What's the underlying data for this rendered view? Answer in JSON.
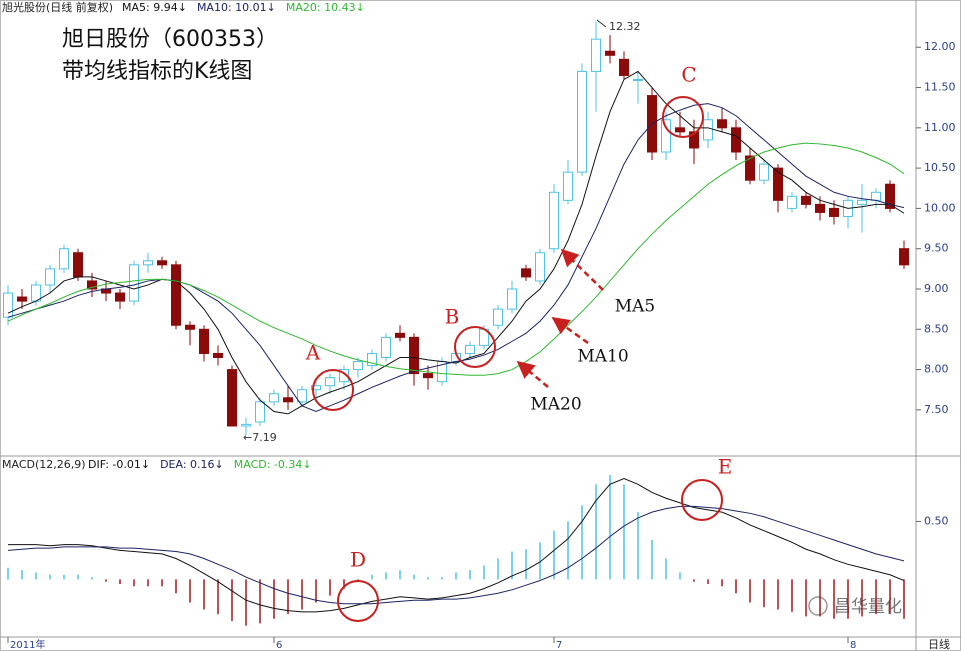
{
  "chart_data": [
    {
      "type": "candlestick",
      "title": "旭日股份（600353）",
      "subtitle": "带均线指标的K线图",
      "header": "旭光股份(日线 前复权)",
      "categories": [
        "2011年",
        null,
        null,
        null,
        null,
        null,
        null,
        null,
        null,
        null,
        null,
        null,
        null,
        null,
        null,
        null,
        null,
        null,
        null,
        "6",
        null,
        null,
        null,
        null,
        null,
        null,
        null,
        null,
        null,
        null,
        null,
        null,
        null,
        null,
        null,
        null,
        null,
        null,
        null,
        "7",
        null,
        null,
        null,
        null,
        null,
        null,
        null,
        null,
        null,
        null,
        null,
        null,
        null,
        null,
        null,
        null,
        null,
        null,
        null,
        null,
        "8",
        null,
        null,
        null,
        null
      ],
      "period_label": "日线",
      "open": [
        8.65,
        8.9,
        8.85,
        9.05,
        9.25,
        9.45,
        9.1,
        9.0,
        8.95,
        8.85,
        9.3,
        9.35,
        9.3,
        8.55,
        8.5,
        8.2,
        8.0,
        7.3,
        7.35,
        7.6,
        7.65,
        7.6,
        7.75,
        7.8,
        7.85,
        8.0,
        8.05,
        8.15,
        8.45,
        8.4,
        7.95,
        7.85,
        8.1,
        8.2,
        8.3,
        8.55,
        8.75,
        9.25,
        9.1,
        9.5,
        10.1,
        10.45,
        11.7,
        11.95,
        11.85,
        11.6,
        11.4,
        10.7,
        11.0,
        10.95,
        10.85,
        11.1,
        11.0,
        10.65,
        10.35,
        10.5,
        10.0,
        10.15,
        10.05,
        10.0,
        9.9,
        10.05,
        10.1,
        10.3,
        9.5
      ],
      "high": [
        9.05,
        9.0,
        9.1,
        9.3,
        9.55,
        9.5,
        9.2,
        9.1,
        9.0,
        9.35,
        9.45,
        9.4,
        9.35,
        8.6,
        8.55,
        8.3,
        8.05,
        7.4,
        7.65,
        7.75,
        7.8,
        7.8,
        7.85,
        7.95,
        8.05,
        8.15,
        8.25,
        8.45,
        8.55,
        8.45,
        8.05,
        8.15,
        8.25,
        8.35,
        8.55,
        8.8,
        9.1,
        9.3,
        9.5,
        10.3,
        10.6,
        11.8,
        12.32,
        12.15,
        11.95,
        11.7,
        11.5,
        11.2,
        11.2,
        11.1,
        11.2,
        11.25,
        11.1,
        10.75,
        10.6,
        10.55,
        10.2,
        10.2,
        10.15,
        10.1,
        10.15,
        10.3,
        10.25,
        10.35,
        9.6
      ],
      "low": [
        8.55,
        8.75,
        8.8,
        8.95,
        9.2,
        9.1,
        8.9,
        8.85,
        8.75,
        8.8,
        9.2,
        9.25,
        8.5,
        8.3,
        8.1,
        8.05,
        7.3,
        7.19,
        7.3,
        7.55,
        7.5,
        7.55,
        7.6,
        7.7,
        7.75,
        7.9,
        8.0,
        8.1,
        8.35,
        7.8,
        7.75,
        7.8,
        8.05,
        8.15,
        8.25,
        8.5,
        8.7,
        9.1,
        9.05,
        9.45,
        10.05,
        10.4,
        11.2,
        11.8,
        11.6,
        11.3,
        10.6,
        10.6,
        10.9,
        10.55,
        10.75,
        10.95,
        10.6,
        10.3,
        10.3,
        9.95,
        9.95,
        10.0,
        9.85,
        9.8,
        9.75,
        9.7,
        10.0,
        9.95,
        9.25
      ],
      "close": [
        8.95,
        8.85,
        9.05,
        9.25,
        9.5,
        9.15,
        9.0,
        8.95,
        8.85,
        9.3,
        9.35,
        9.3,
        8.55,
        8.5,
        8.2,
        8.15,
        7.3,
        7.32,
        7.6,
        7.7,
        7.6,
        7.75,
        7.8,
        7.9,
        8.0,
        8.1,
        8.2,
        8.4,
        8.4,
        7.95,
        7.9,
        8.1,
        8.2,
        8.3,
        8.5,
        8.75,
        9.0,
        9.15,
        9.45,
        10.2,
        10.45,
        11.7,
        12.1,
        11.9,
        11.65,
        11.6,
        10.7,
        11.1,
        10.95,
        10.75,
        11.1,
        11.0,
        10.7,
        10.35,
        10.55,
        10.1,
        10.15,
        10.05,
        9.95,
        9.9,
        10.1,
        10.1,
        10.2,
        10.0,
        9.3
      ],
      "up_color": "#4fc3e8",
      "down_color": "#8b0a0a",
      "series": [
        {
          "name": "MA5",
          "legend": "MA5: 9.94↓",
          "color": "#111111",
          "values": [
            8.7,
            8.78,
            8.85,
            8.95,
            9.1,
            9.15,
            9.15,
            9.1,
            9.05,
            9.0,
            9.05,
            9.12,
            9.1,
            8.95,
            8.75,
            8.5,
            8.15,
            7.85,
            7.62,
            7.48,
            7.45,
            7.55,
            7.65,
            7.72,
            7.78,
            7.85,
            7.95,
            8.05,
            8.15,
            8.15,
            8.12,
            8.1,
            8.08,
            8.15,
            8.2,
            8.4,
            8.6,
            8.85,
            9.0,
            9.25,
            9.6,
            10.05,
            10.65,
            11.2,
            11.6,
            11.7,
            11.5,
            11.3,
            11.15,
            11.0,
            11.0,
            10.95,
            10.9,
            10.75,
            10.6,
            10.45,
            10.35,
            10.2,
            10.1,
            10.05,
            10.0,
            10.02,
            10.05,
            10.05,
            9.94
          ]
        },
        {
          "name": "MA10",
          "legend": "MA10: 10.01↓",
          "color": "#1c2366",
          "values": [
            8.65,
            8.7,
            8.75,
            8.8,
            8.85,
            8.92,
            8.97,
            9.0,
            9.02,
            9.05,
            9.1,
            9.12,
            9.1,
            9.05,
            8.95,
            8.85,
            8.7,
            8.5,
            8.3,
            8.05,
            7.8,
            7.55,
            7.48,
            7.55,
            7.62,
            7.7,
            7.78,
            7.85,
            7.92,
            7.98,
            8.02,
            8.06,
            8.1,
            8.13,
            8.18,
            8.25,
            8.35,
            8.45,
            8.6,
            8.8,
            9.05,
            9.4,
            9.75,
            10.15,
            10.55,
            10.85,
            11.05,
            11.15,
            11.22,
            11.28,
            11.3,
            11.25,
            11.15,
            11.0,
            10.85,
            10.7,
            10.55,
            10.4,
            10.3,
            10.2,
            10.15,
            10.12,
            10.1,
            10.05,
            10.01
          ]
        },
        {
          "name": "MA20",
          "legend": "MA20: 10.43↓",
          "color": "#2fb82f",
          "values": [
            8.6,
            8.68,
            8.75,
            8.82,
            8.9,
            8.97,
            9.02,
            9.06,
            9.08,
            9.1,
            9.12,
            9.12,
            9.1,
            9.05,
            8.98,
            8.9,
            8.8,
            8.7,
            8.6,
            8.52,
            8.45,
            8.38,
            8.3,
            8.23,
            8.17,
            8.12,
            8.08,
            8.04,
            8.01,
            7.99,
            7.97,
            7.95,
            7.94,
            7.93,
            7.93,
            7.95,
            8.0,
            8.1,
            8.22,
            8.38,
            8.55,
            8.72,
            8.9,
            9.1,
            9.3,
            9.5,
            9.68,
            9.85,
            10.0,
            10.15,
            10.3,
            10.42,
            10.53,
            10.62,
            10.7,
            10.75,
            10.79,
            10.81,
            10.8,
            10.78,
            10.75,
            10.7,
            10.63,
            10.55,
            10.43
          ]
        }
      ],
      "ylim": [
        6.94,
        12.4
      ],
      "yticks": [
        {
          "value": 7.5,
          "label": "7.50"
        },
        {
          "value": 8,
          "label": "8.00"
        },
        {
          "value": 8.5,
          "label": "8.50"
        },
        {
          "value": 9,
          "label": "9.00"
        },
        {
          "value": 9.5,
          "label": "9.50"
        },
        {
          "value": 10,
          "label": "10.00"
        },
        {
          "value": 10.5,
          "label": "10.50"
        },
        {
          "value": 11,
          "label": "11.00"
        },
        {
          "value": 11.5,
          "label": "11.50"
        },
        {
          "value": 12,
          "label": "12.00"
        }
      ],
      "annotations": {
        "high": "12.32",
        "low": "←7.19",
        "circles": [
          "A",
          "B",
          "C"
        ]
      }
    },
    {
      "type": "macd",
      "header": "MACD(12,26,9)",
      "up_color": "#4fc3e8",
      "down_color": "#a01a1a",
      "series": [
        {
          "name": "DIF",
          "legend": "DIF: -0.01↓",
          "color": "#111111",
          "values": [
            0.3,
            0.3,
            0.3,
            0.29,
            0.3,
            0.3,
            0.29,
            0.27,
            0.25,
            0.24,
            0.23,
            0.22,
            0.18,
            0.12,
            0.05,
            -0.02,
            -0.1,
            -0.18,
            -0.22,
            -0.25,
            -0.27,
            -0.28,
            -0.28,
            -0.27,
            -0.25,
            -0.22,
            -0.19,
            -0.17,
            -0.15,
            -0.16,
            -0.17,
            -0.16,
            -0.14,
            -0.12,
            -0.08,
            -0.03,
            0.03,
            0.08,
            0.15,
            0.25,
            0.35,
            0.5,
            0.68,
            0.82,
            0.87,
            0.82,
            0.75,
            0.7,
            0.66,
            0.62,
            0.6,
            0.58,
            0.53,
            0.47,
            0.42,
            0.37,
            0.32,
            0.26,
            0.22,
            0.17,
            0.13,
            0.1,
            0.07,
            0.04,
            -0.01
          ]
        },
        {
          "name": "DEA",
          "legend": "DEA: 0.16↓",
          "color": "#1c2366",
          "values": [
            0.25,
            0.26,
            0.27,
            0.27,
            0.28,
            0.28,
            0.28,
            0.28,
            0.27,
            0.27,
            0.26,
            0.25,
            0.24,
            0.22,
            0.18,
            0.13,
            0.08,
            0.02,
            -0.03,
            -0.08,
            -0.12,
            -0.15,
            -0.18,
            -0.2,
            -0.21,
            -0.21,
            -0.21,
            -0.2,
            -0.19,
            -0.18,
            -0.18,
            -0.17,
            -0.17,
            -0.16,
            -0.14,
            -0.12,
            -0.09,
            -0.05,
            -0.01,
            0.04,
            0.1,
            0.18,
            0.27,
            0.37,
            0.46,
            0.53,
            0.58,
            0.61,
            0.63,
            0.63,
            0.62,
            0.61,
            0.59,
            0.57,
            0.54,
            0.5,
            0.46,
            0.42,
            0.38,
            0.34,
            0.3,
            0.26,
            0.22,
            0.19,
            0.16
          ]
        },
        {
          "name": "MACD",
          "legend": "MACD: -0.34↓",
          "color": "#2fb82f",
          "values": [
            0.1,
            0.08,
            0.06,
            0.04,
            0.04,
            0.04,
            0.02,
            -0.02,
            -0.04,
            -0.06,
            -0.06,
            -0.06,
            -0.12,
            -0.2,
            -0.26,
            -0.3,
            -0.36,
            -0.4,
            -0.38,
            -0.34,
            -0.3,
            -0.26,
            -0.2,
            -0.14,
            -0.08,
            -0.02,
            0.04,
            0.06,
            0.08,
            0.04,
            0.02,
            0.02,
            0.06,
            0.08,
            0.12,
            0.18,
            0.24,
            0.26,
            0.32,
            0.42,
            0.5,
            0.64,
            0.82,
            0.9,
            0.82,
            0.58,
            0.34,
            0.18,
            0.06,
            -0.02,
            -0.04,
            -0.06,
            -0.12,
            -0.2,
            -0.24,
            -0.26,
            -0.28,
            -0.32,
            -0.32,
            -0.34,
            -0.34,
            -0.32,
            -0.3,
            -0.3,
            -0.34
          ]
        }
      ],
      "ylim": [
        -0.48,
        1.03
      ],
      "yticks": [
        {
          "value": 0.5,
          "label": "0.50"
        }
      ],
      "annotations": {
        "circles": [
          "D",
          "E"
        ]
      },
      "watermark": "昌华量化"
    }
  ]
}
